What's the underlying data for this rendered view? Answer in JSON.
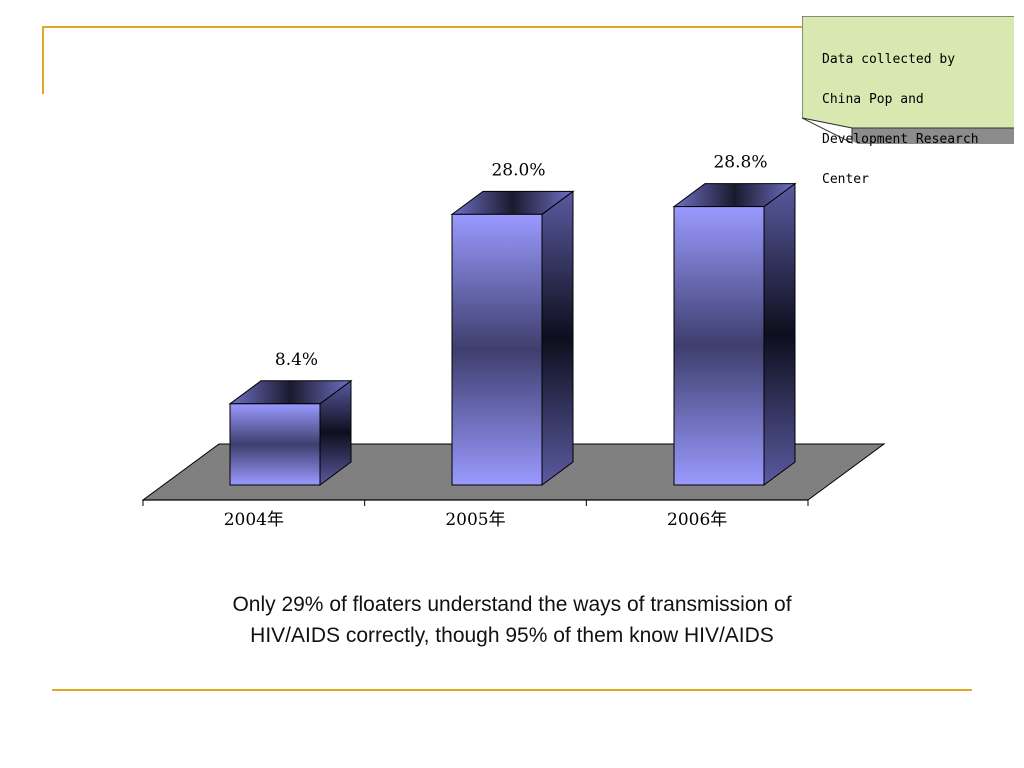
{
  "note": {
    "lines": [
      "Data collected by",
      "China Pop and",
      "Development Research",
      "Center"
    ]
  },
  "caption": {
    "line1": "Only 29% of floaters understand the ways of transmission of",
    "line2": "HIV/AIDS correctly, though 95% of them know HIV/AIDS"
  },
  "chart_data": {
    "type": "bar",
    "categories": [
      "2004年",
      "2005年",
      "2006年"
    ],
    "values": [
      8.4,
      28.0,
      28.8
    ],
    "data_labels": [
      "8.4%",
      "28.0%",
      "28.8%"
    ],
    "title": "",
    "xlabel": "",
    "ylabel": "",
    "ylim": [
      0,
      30
    ],
    "grid": false,
    "three_d": true,
    "colors": {
      "bar_front": "#9a9aff",
      "bar_dark": "#1a1a2e",
      "floor": "#808080"
    }
  }
}
